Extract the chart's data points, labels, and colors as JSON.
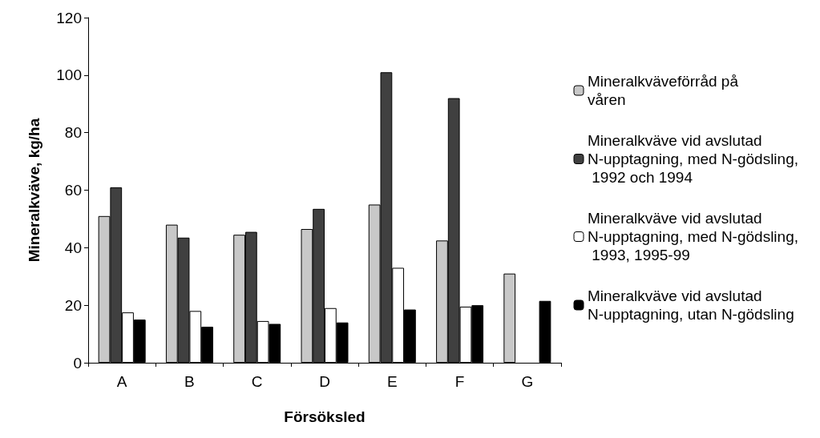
{
  "chart_data": {
    "type": "bar",
    "xlabel": "Försöksled",
    "ylabel": "Mineralkväve, kg/ha",
    "categories": [
      "A",
      "B",
      "C",
      "D",
      "E",
      "F",
      "G"
    ],
    "series": [
      {
        "name": "Mineralkväveförråd på våren",
        "color": "#c8c8c8",
        "values": [
          51,
          48,
          44.5,
          46.5,
          55,
          42.5,
          31
        ]
      },
      {
        "name": "Mineralkväve vid avslutad N-upptagning, med N-gödsling, 1992 och 1994",
        "color": "#404040",
        "values": [
          61,
          43.5,
          45.5,
          53.5,
          101,
          92,
          null
        ]
      },
      {
        "name": "Mineralkväve vid avslutad N-upptagning, med N-gödsling, 1993, 1995-99",
        "color": "#ffffff",
        "values": [
          17.5,
          18,
          14.5,
          19,
          33,
          19.5,
          null
        ]
      },
      {
        "name": "Mineralkväve vid avslutad N-upptagning, utan N-gödsling",
        "color": "#000000",
        "values": [
          15,
          12.5,
          13.5,
          14,
          18.5,
          20,
          21.5
        ]
      }
    ],
    "ylim": [
      0,
      120
    ],
    "yticks": [
      0,
      20,
      40,
      60,
      80,
      100,
      120
    ],
    "grid": false,
    "legend": "right"
  }
}
